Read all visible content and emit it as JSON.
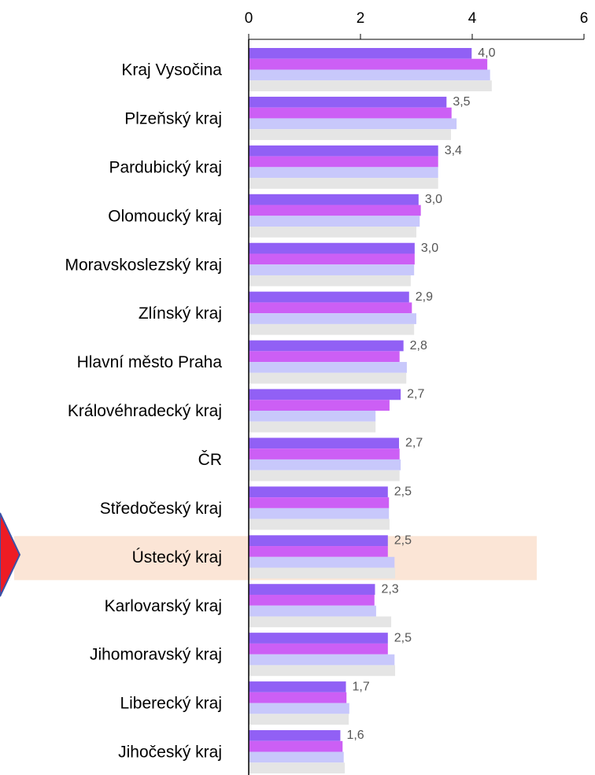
{
  "chart_data": {
    "type": "barh",
    "categories": [
      "Kraj Vysočina",
      "Plzeňský kraj",
      "Pardubický kraj",
      "Olomoucký kraj",
      "Moravskoslezský kraj",
      "Zlínský kraj",
      "Hlavní město Praha",
      "Královéhradecký kraj",
      "ČR",
      "Středočeský kraj",
      "Ústecký kraj",
      "Karlovarský kraj",
      "Jihomoravský kraj",
      "Liberecký kraj",
      "Jihočeský kraj"
    ],
    "series": [
      {
        "color": "#9160f5",
        "values": [
          3.99,
          3.54,
          3.39,
          3.04,
          2.97,
          2.87,
          2.77,
          2.72,
          2.69,
          2.49,
          2.49,
          2.26,
          2.49,
          1.74,
          1.64
        ],
        "value_labels": [
          "4,0",
          "3,5",
          "3,4",
          "3,0",
          "3,0",
          "2,9",
          "2,8",
          "2,7",
          "2,7",
          "2,5",
          "2,5",
          "2,3",
          "2,5",
          "1,7",
          "1,6"
        ]
      },
      {
        "color": "#cc5ff5",
        "values": [
          4.27,
          3.63,
          3.39,
          3.08,
          2.97,
          2.92,
          2.7,
          2.52,
          2.7,
          2.51,
          2.49,
          2.25,
          2.49,
          1.75,
          1.68
        ]
      },
      {
        "color": "#c8c8fb",
        "values": [
          4.32,
          3.72,
          3.39,
          3.06,
          2.96,
          3.0,
          2.83,
          2.27,
          2.72,
          2.51,
          2.61,
          2.28,
          2.61,
          1.8,
          1.7
        ]
      },
      {
        "color": "#e5e5e5",
        "values": [
          4.35,
          3.62,
          3.39,
          3.0,
          2.9,
          2.96,
          2.82,
          2.27,
          2.7,
          2.52,
          2.62,
          2.55,
          2.62,
          1.79,
          1.72
        ]
      }
    ],
    "xlim": [
      0,
      6
    ],
    "xticks": [
      0,
      2,
      4,
      6
    ],
    "highlight_category": "Ústecký kraj"
  }
}
